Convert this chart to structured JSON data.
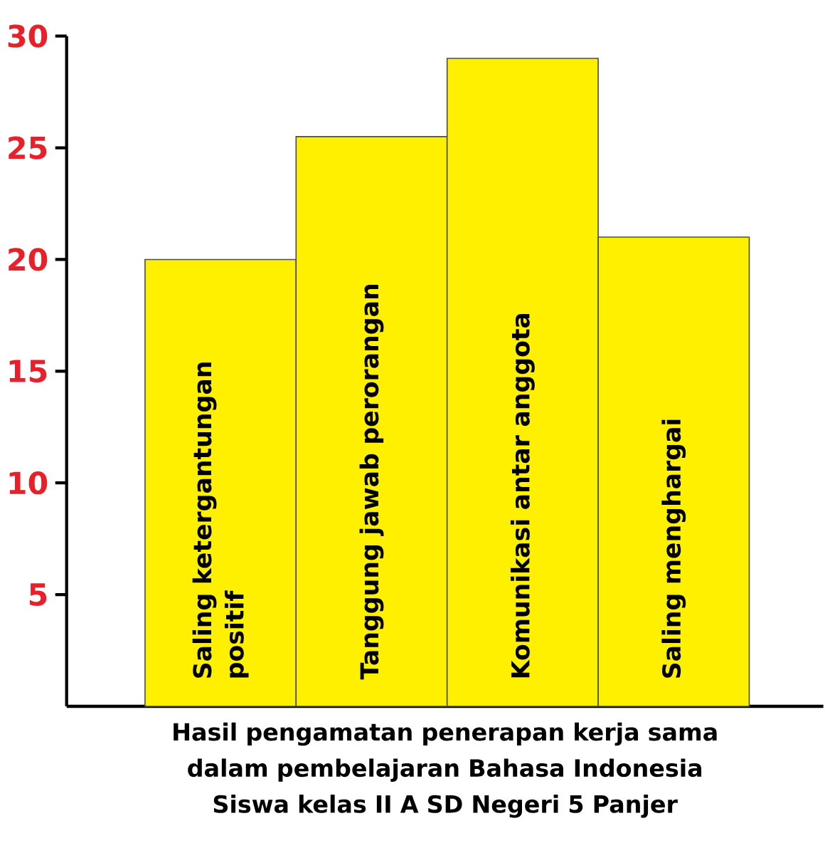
{
  "chart_data": {
    "type": "bar",
    "xlabel": "Hasil pengamatan penerapan kerja sama dalam pembelajaran Bahasa Indonesia Siswa kelas II A SD Negeri 5 Panjer",
    "categories": [
      "Saling ketergantungan positif",
      "Tanggung jawab perorangan",
      "Komunikasi antar anggota",
      "Saling menghargai"
    ],
    "values": [
      20,
      25.5,
      29,
      21
    ],
    "color": "#fff000",
    "ylim": [
      0,
      30
    ],
    "yticks": [
      5,
      10,
      15,
      20,
      25,
      30
    ]
  }
}
